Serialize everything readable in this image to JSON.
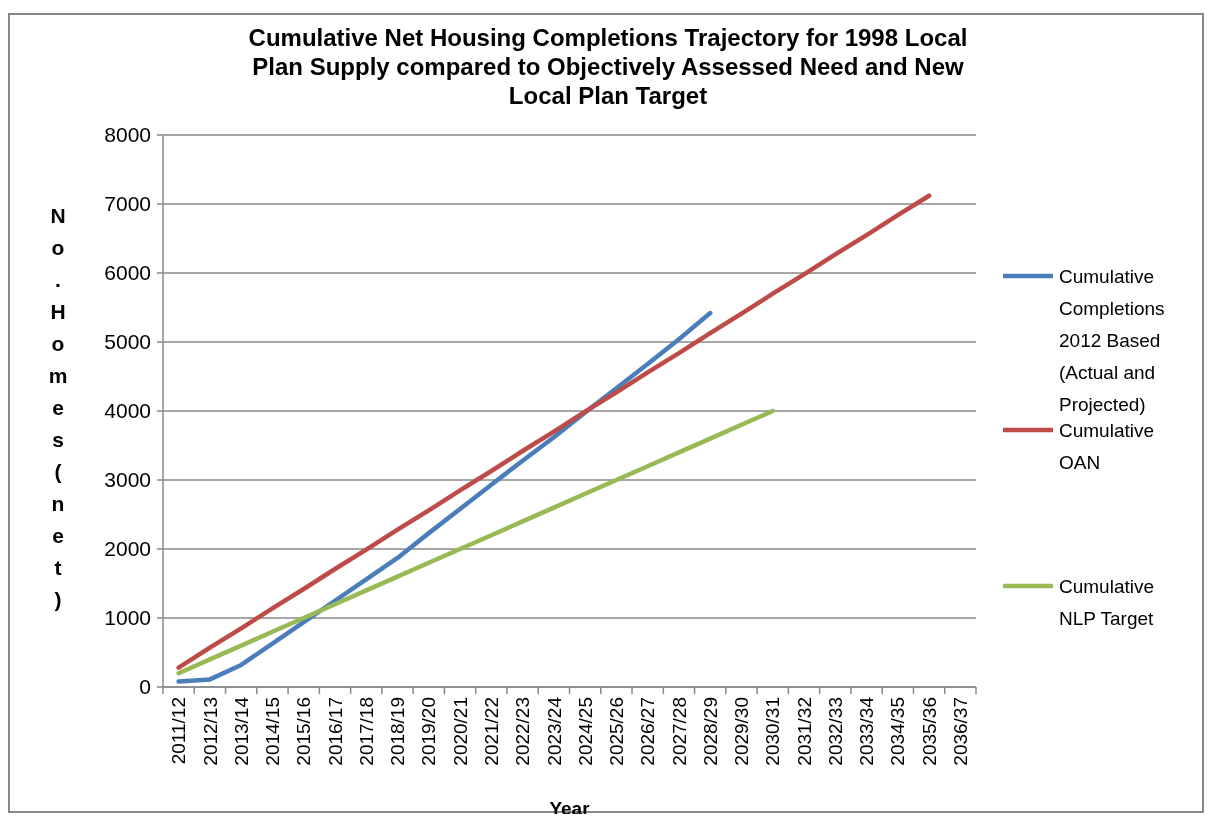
{
  "chart_data": {
    "type": "line",
    "title": "Cumulative Net Housing Completions Trajectory for 1998 Local Plan Supply compared to Objectively Assessed Need and New Local Plan Target",
    "xlabel": "Year",
    "ylabel": "No. Homes (net)",
    "categories": [
      "2011/12",
      "2012/13",
      "2013/14",
      "2014/15",
      "2015/16",
      "2016/17",
      "2017/18",
      "2018/19",
      "2019/20",
      "2020/21",
      "2021/22",
      "2022/23",
      "2023/24",
      "2024/25",
      "2025/26",
      "2026/27",
      "2027/28",
      "2028/29",
      "2029/30",
      "2030/31",
      "2031/32",
      "2032/33",
      "2033/34",
      "2034/35",
      "2035/36",
      "2036/37"
    ],
    "series": [
      {
        "name": "Cumulative Completions 2012 Based (Actual and Projected)",
        "color": "#4a7ebb",
        "values": [
          80,
          110,
          320,
          630,
          940,
          1250,
          1560,
          1870,
          2230,
          2580,
          2930,
          3280,
          3620,
          3980,
          4330,
          4680,
          5040,
          5420,
          null,
          null,
          null,
          null,
          null,
          null,
          null,
          null
        ]
      },
      {
        "name": "Cumulative OAN",
        "color": "#be4b48",
        "values": [
          280,
          570,
          850,
          1140,
          1420,
          1710,
          1990,
          2280,
          2560,
          2850,
          3130,
          3420,
          3700,
          3990,
          4270,
          4560,
          4840,
          5130,
          5410,
          5700,
          5980,
          6270,
          6550,
          6840,
          7120,
          null
        ]
      },
      {
        "name": "Cumulative NLP Target",
        "color": "#98b954",
        "values": [
          200,
          400,
          600,
          800,
          1000,
          1200,
          1400,
          1600,
          1800,
          2000,
          2200,
          2400,
          2600,
          2800,
          3000,
          3200,
          3400,
          3600,
          3800,
          4000,
          null,
          null,
          null,
          null,
          null,
          null
        ]
      }
    ],
    "ylim": [
      0,
      8000
    ],
    "yticks": [
      0,
      1000,
      2000,
      3000,
      4000,
      5000,
      6000,
      7000,
      8000
    ],
    "grid": "y",
    "legend": "right",
    "marker": "none",
    "line_style": "solid"
  }
}
